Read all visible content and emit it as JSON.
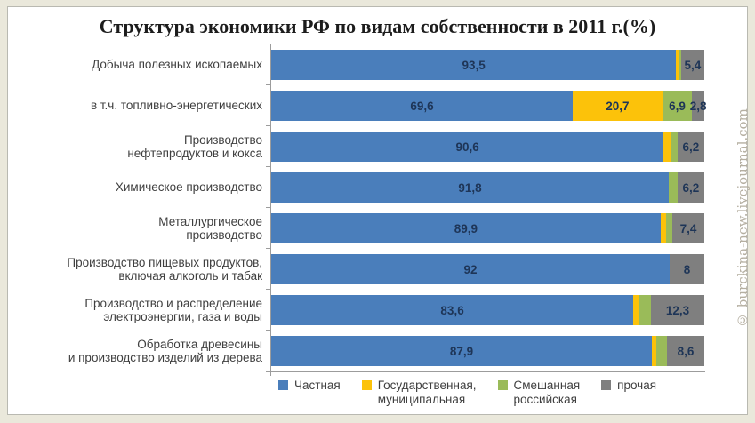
{
  "title": "Структура экономики РФ по видам собственности в 2011 г.(%)",
  "watermark": "© burckina-new.livejournal.com",
  "colors": {
    "page_background": "#eae8db",
    "panel_background": "#ffffff",
    "private_blue": "#4a7ebb",
    "state_yellow": "#fcc20a",
    "mixed_green": "#9abb59",
    "other_gray": "#7f7f7f",
    "value_text": "#1e3557",
    "axis": "#9c9c9c"
  },
  "chart_data": {
    "type": "bar",
    "orientation": "horizontal-stacked",
    "title": "Структура экономики РФ по видам собственности в 2011 г.(%)",
    "xlim": [
      0,
      100
    ],
    "legend_position": "bottom",
    "grid": false,
    "categories": [
      "Добыча полезных ископаемых",
      "в т.ч. топливно-энергетических",
      "Производство\nнефтепродуктов и кокса",
      "Химическое производство",
      "Металлургическое\nпроизводство",
      "Производство пищевых продуктов,\nвключая алкоголь и табак",
      "Производство и распределение\nэлектроэнергии, газа и воды",
      "Обработка древесины\nи производство изделий из дерева"
    ],
    "series": [
      {
        "name": "Частная",
        "color": "#4a7ebb",
        "values": [
          93.5,
          69.6,
          90.6,
          91.8,
          89.9,
          92,
          83.6,
          87.9
        ]
      },
      {
        "name": "Государственная, муниципальная",
        "color": "#fcc20a",
        "values": [
          0.5,
          20.7,
          1.5,
          0,
          1.3,
          0,
          1.2,
          1.1
        ]
      },
      {
        "name": "Смешанная российская",
        "color": "#9abb59",
        "values": [
          0.6,
          6.9,
          1.7,
          2.0,
          1.4,
          0,
          2.9,
          2.4
        ]
      },
      {
        "name": "прочая",
        "color": "#7f7f7f",
        "values": [
          5.4,
          2.8,
          6.2,
          6.2,
          7.4,
          8,
          12.3,
          8.6
        ]
      }
    ],
    "value_labels": [
      [
        "93,5",
        null,
        null,
        "5,4"
      ],
      [
        "69,6",
        "20,7",
        "6,9",
        "2,8"
      ],
      [
        "90,6",
        null,
        null,
        "6,2"
      ],
      [
        "91,8",
        null,
        null,
        "6,2"
      ],
      [
        "89,9",
        null,
        null,
        "7,4"
      ],
      [
        "92",
        null,
        null,
        "8"
      ],
      [
        "83,6",
        null,
        null,
        "12,3"
      ],
      [
        "87,9",
        null,
        null,
        "8,6"
      ]
    ]
  },
  "legend": {
    "items": [
      {
        "label": "Частная",
        "color": "#4a7ebb"
      },
      {
        "label": "Государственная,\nмуниципальная",
        "color": "#fcc20a"
      },
      {
        "label": "Смешанная\nроссийская",
        "color": "#9abb59"
      },
      {
        "label": "прочая",
        "color": "#7f7f7f"
      }
    ]
  }
}
